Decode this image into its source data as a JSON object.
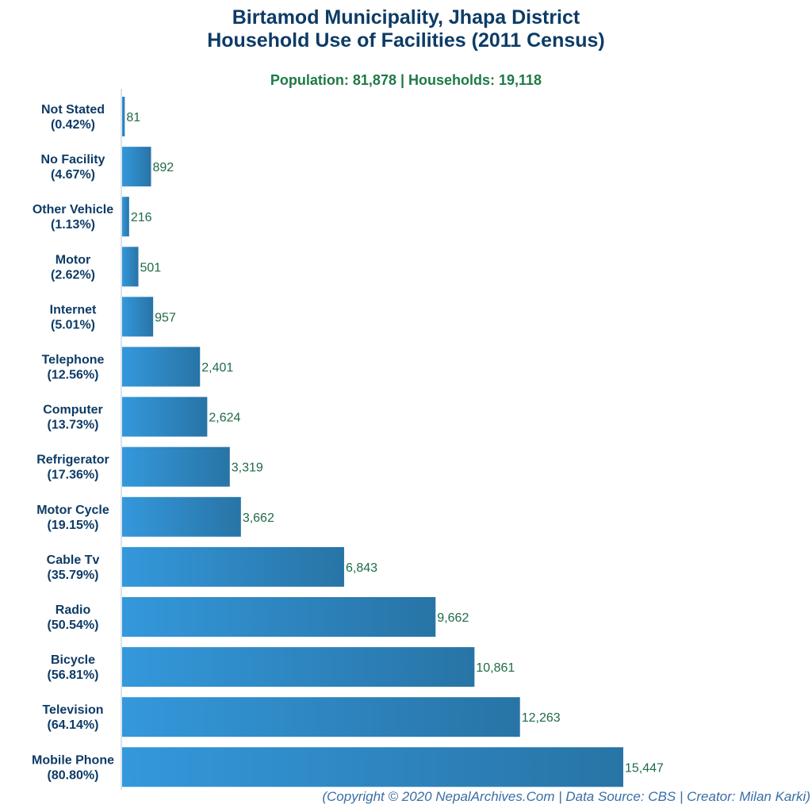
{
  "chart_data": {
    "type": "bar",
    "orientation": "horizontal",
    "title": [
      "Birtamod Municipality, Jhapa District",
      "Household Use of Facilities (2011 Census)"
    ],
    "subtitle": "Population: 81,878 | Households: 19,118",
    "footer": "(Copyright © 2020 NepalArchives.Com | Data Source: CBS | Creator: Milan Karki)",
    "categories": [
      "Not Stated",
      "No Facility",
      "Other Vehicle",
      "Motor",
      "Internet",
      "Telephone",
      "Computer",
      "Refrigerator",
      "Motor Cycle",
      "Cable Tv",
      "Radio",
      "Bicycle",
      "Television",
      "Mobile Phone"
    ],
    "percents": [
      "(0.42%)",
      "(4.67%)",
      "(1.13%)",
      "(2.62%)",
      "(5.01%)",
      "(12.56%)",
      "(13.73%)",
      "(17.36%)",
      "(19.15%)",
      "(35.79%)",
      "(50.54%)",
      "(56.81%)",
      "(64.14%)",
      "(80.80%)"
    ],
    "values": [
      81,
      892,
      216,
      501,
      957,
      2401,
      2624,
      3319,
      3662,
      6843,
      9662,
      10861,
      12263,
      15447
    ],
    "value_labels": [
      "81",
      "892",
      "216",
      "501",
      "957",
      "2,401",
      "2,624",
      "3,319",
      "3,662",
      "6,843",
      "9,662",
      "10,861",
      "12,263",
      "15,447"
    ],
    "xlim": [
      0,
      15447
    ],
    "grid": false,
    "colors": {
      "bar_start": "#3498db",
      "bar_end": "#2874a6",
      "axis": "#b0c4de"
    }
  }
}
